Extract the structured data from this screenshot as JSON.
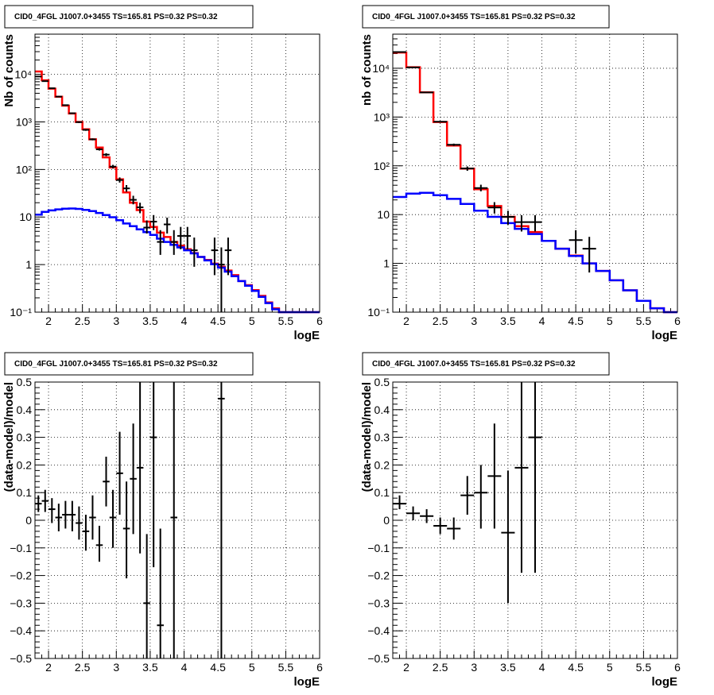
{
  "chart_data": [
    {
      "type": "step",
      "title": "CID0_4FGL J1007.0+3455 TS=165.81 PS=0.32 PS=0.32",
      "xlabel": "logE",
      "ylabel": "Nb of counts",
      "xlim": [
        1.8,
        6.0
      ],
      "ylim": [
        0.1,
        70000
      ],
      "yscale": "log",
      "grid": true,
      "xticks": [
        "2",
        "2.5",
        "3",
        "3.5",
        "4",
        "4.5",
        "5",
        "5.5",
        "6"
      ],
      "yticks": [
        "10⁻¹",
        "1",
        "10",
        "10²",
        "10³",
        "10⁴"
      ],
      "bin_edges": [
        1.8,
        1.9,
        2.0,
        2.1,
        2.2,
        2.3,
        2.4,
        2.5,
        2.6,
        2.7,
        2.8,
        2.9,
        3.0,
        3.1,
        3.2,
        3.3,
        3.4,
        3.5,
        3.6,
        3.7,
        3.8,
        3.9,
        4.0,
        4.1,
        4.2,
        4.3,
        4.4,
        4.5,
        4.6,
        4.7,
        4.8,
        4.9,
        5.0,
        5.1,
        5.2,
        5.3,
        5.4,
        5.5,
        5.6,
        5.7,
        5.8,
        5.9,
        6.0
      ],
      "series": [
        {
          "color": "#ff0000",
          "values": [
            11500,
            7500,
            5000,
            3400,
            2200,
            1500,
            1000,
            700,
            430,
            290,
            180,
            110,
            62,
            33,
            20,
            14,
            8.0,
            6.2,
            4.7,
            3.8,
            3.0,
            2.5,
            2.1,
            1.75,
            1.45,
            1.25,
            1.05,
            0.9,
            0.75,
            0.6,
            0.45,
            0.37,
            0.29,
            0.22,
            0.16,
            0.12,
            0.1,
            0.1,
            0.1,
            0.1,
            0.1,
            0.1
          ]
        },
        {
          "color": "#0000ff",
          "values": [
            11.2,
            12.8,
            13.8,
            14.5,
            15.0,
            15.1,
            14.8,
            14.1,
            13.3,
            12.2,
            11.0,
            9.9,
            8.6,
            7.3,
            6.4,
            5.5,
            4.8,
            4.2,
            3.5,
            3.0,
            2.6,
            2.3,
            2.0,
            1.72,
            1.45,
            1.22,
            1.02,
            0.86,
            0.71,
            0.57,
            0.45,
            0.36,
            0.28,
            0.21,
            0.155,
            0.115,
            0.1,
            0.1,
            0.1,
            0.1,
            0.1,
            0.1
          ]
        }
      ],
      "points": [
        {
          "x": 1.85,
          "y": 9000,
          "lo": 8800,
          "hi": 9200
        },
        {
          "x": 1.95,
          "y": 7200,
          "lo": 7050,
          "hi": 7350
        },
        {
          "x": 2.05,
          "y": 5100,
          "lo": 4970,
          "hi": 5230
        },
        {
          "x": 2.15,
          "y": 3400,
          "lo": 3300,
          "hi": 3500
        },
        {
          "x": 2.25,
          "y": 2250,
          "lo": 2180,
          "hi": 2320
        },
        {
          "x": 2.35,
          "y": 1520,
          "lo": 1470,
          "hi": 1570
        },
        {
          "x": 2.45,
          "y": 990,
          "lo": 950,
          "hi": 1030
        },
        {
          "x": 2.55,
          "y": 680,
          "lo": 650,
          "hi": 710
        },
        {
          "x": 2.65,
          "y": 430,
          "lo": 410,
          "hi": 450
        },
        {
          "x": 2.75,
          "y": 265,
          "lo": 250,
          "hi": 280
        },
        {
          "x": 2.85,
          "y": 205,
          "lo": 190,
          "hi": 220
        },
        {
          "x": 2.95,
          "y": 115,
          "lo": 105,
          "hi": 125
        },
        {
          "x": 3.05,
          "y": 60,
          "lo": 53,
          "hi": 68
        },
        {
          "x": 3.15,
          "y": 40,
          "lo": 34,
          "hi": 47
        },
        {
          "x": 3.25,
          "y": 23,
          "lo": 18.5,
          "hi": 28
        },
        {
          "x": 3.35,
          "y": 16,
          "lo": 12,
          "hi": 20
        },
        {
          "x": 3.45,
          "y": 6,
          "lo": 4.5,
          "hi": 8.5
        },
        {
          "x": 3.55,
          "y": 8,
          "lo": 5.3,
          "hi": 11
        },
        {
          "x": 3.65,
          "y": 3,
          "lo": 1.6,
          "hi": 5.3
        },
        {
          "x": 3.75,
          "y": 7,
          "lo": 4.5,
          "hi": 9.7
        },
        {
          "x": 3.85,
          "y": 3,
          "lo": 1.6,
          "hi": 5.3
        },
        {
          "x": 3.95,
          "y": 4,
          "lo": 2.1,
          "hi": 6.2
        },
        {
          "x": 4.05,
          "y": 4,
          "lo": 2.1,
          "hi": 6.2
        },
        {
          "x": 4.15,
          "y": 2,
          "lo": 0.9,
          "hi": 3.7
        },
        {
          "x": 4.45,
          "y": 2,
          "lo": 0.6,
          "hi": 3.7
        },
        {
          "x": 4.55,
          "y": 1,
          "lo": 0.1,
          "hi": 2.3
        },
        {
          "x": 4.65,
          "y": 2,
          "lo": 0.6,
          "hi": 3.7
        }
      ]
    },
    {
      "type": "step",
      "title": "CID0_4FGL J1007.0+3455 TS=165.81 PS=0.32 PS=0.32",
      "xlabel": "logE",
      "ylabel": "nb of counts",
      "xlim": [
        1.8,
        6.0
      ],
      "ylim": [
        0.1,
        50000
      ],
      "yscale": "log",
      "grid": true,
      "xticks": [
        "2",
        "2.5",
        "3",
        "3.5",
        "4",
        "4.5",
        "5",
        "5.5",
        "6"
      ],
      "yticks": [
        "10⁻¹",
        "1",
        "10",
        "10²",
        "10³",
        "10⁴"
      ],
      "bin_edges": [
        1.8,
        2.0,
        2.2,
        2.4,
        2.6,
        2.8,
        3.0,
        3.2,
        3.4,
        3.6,
        3.8,
        4.0,
        4.2,
        4.4,
        4.6,
        4.8,
        5.0,
        5.2,
        5.4,
        5.6,
        5.8,
        6.0
      ],
      "series": [
        {
          "color": "#ff0000",
          "values": [
            21000,
            10500,
            3200,
            790,
            260,
            88,
            33,
            15,
            9.0,
            5.8,
            4.4,
            2.9,
            2.0,
            1.45,
            1.0,
            0.7,
            0.45,
            0.28,
            0.17,
            0.12,
            0.1
          ]
        },
        {
          "color": "#0000ff",
          "values": [
            23,
            27,
            28,
            25,
            21,
            16.5,
            12,
            9.0,
            6.7,
            5.1,
            4.0,
            2.9,
            2.0,
            1.42,
            1.0,
            0.7,
            0.45,
            0.28,
            0.17,
            0.12,
            0.1
          ]
        }
      ],
      "points": [
        {
          "x": 1.9,
          "y": 21500,
          "lo": 21300,
          "hi": 21700
        },
        {
          "x": 2.1,
          "y": 10400,
          "lo": 10250,
          "hi": 10550
        },
        {
          "x": 2.3,
          "y": 3200,
          "lo": 3140,
          "hi": 3260
        },
        {
          "x": 2.5,
          "y": 800,
          "lo": 775,
          "hi": 825
        },
        {
          "x": 2.7,
          "y": 270,
          "lo": 255,
          "hi": 285
        },
        {
          "x": 2.9,
          "y": 88,
          "lo": 79,
          "hi": 97
        },
        {
          "x": 3.1,
          "y": 35,
          "lo": 30,
          "hi": 41
        },
        {
          "x": 3.3,
          "y": 14,
          "lo": 10.5,
          "hi": 18
        },
        {
          "x": 3.5,
          "y": 9,
          "lo": 6.2,
          "hi": 12
        },
        {
          "x": 3.7,
          "y": 7,
          "lo": 4.5,
          "hi": 9.7
        },
        {
          "x": 3.9,
          "y": 7,
          "lo": 4.5,
          "hi": 9.7
        },
        {
          "x": 4.5,
          "y": 3,
          "lo": 1.6,
          "hi": 4.8
        },
        {
          "x": 4.7,
          "y": 2,
          "lo": 0.65,
          "hi": 3.5
        }
      ]
    },
    {
      "type": "scatter",
      "title": "CID0_4FGL J1007.0+3455 TS=165.81 PS=0.32 PS=0.32",
      "xlabel": "logE",
      "ylabel": "(data-model)/model",
      "xlim": [
        1.8,
        6.0
      ],
      "ylim": [
        -0.5,
        0.5
      ],
      "grid": true,
      "xticks": [
        "2",
        "2.5",
        "3",
        "3.5",
        "4",
        "4.5",
        "5",
        "5.5",
        "6"
      ],
      "yticks": [
        "−0.5",
        "−0.4",
        "−0.3",
        "−0.2",
        "−0.1",
        "0",
        "0.1",
        "0.2",
        "0.3",
        "0.4",
        "0.5"
      ],
      "points": [
        {
          "x": 1.85,
          "y": 0.06,
          "lo": 0.03,
          "hi": 0.09
        },
        {
          "x": 1.95,
          "y": 0.07,
          "lo": 0.03,
          "hi": 0.11
        },
        {
          "x": 2.05,
          "y": 0.04,
          "lo": -0.01,
          "hi": 0.08
        },
        {
          "x": 2.15,
          "y": 0.01,
          "lo": -0.04,
          "hi": 0.06
        },
        {
          "x": 2.25,
          "y": 0.02,
          "lo": -0.03,
          "hi": 0.07
        },
        {
          "x": 2.35,
          "y": 0.02,
          "lo": -0.04,
          "hi": 0.07
        },
        {
          "x": 2.45,
          "y": -0.01,
          "lo": -0.07,
          "hi": 0.05
        },
        {
          "x": 2.55,
          "y": -0.04,
          "lo": -0.11,
          "hi": 0.02
        },
        {
          "x": 2.65,
          "y": 0.01,
          "lo": -0.07,
          "hi": 0.09
        },
        {
          "x": 2.75,
          "y": -0.09,
          "lo": -0.15,
          "hi": -0.02
        },
        {
          "x": 2.85,
          "y": 0.14,
          "lo": 0.05,
          "hi": 0.23
        },
        {
          "x": 2.95,
          "y": 0.01,
          "lo": -0.1,
          "hi": 0.11
        },
        {
          "x": 3.05,
          "y": 0.17,
          "lo": 0.02,
          "hi": 0.32
        },
        {
          "x": 3.15,
          "y": -0.03,
          "lo": -0.21,
          "hi": 0.14
        },
        {
          "x": 3.25,
          "y": 0.15,
          "lo": -0.05,
          "hi": 0.35
        },
        {
          "x": 3.35,
          "y": 0.19,
          "lo": -0.12,
          "hi": 0.5
        },
        {
          "x": 3.45,
          "y": -0.3,
          "lo": -0.5,
          "hi": -0.05
        },
        {
          "x": 3.55,
          "y": 0.3,
          "lo": -0.17,
          "hi": 0.5
        },
        {
          "x": 3.65,
          "y": -0.38,
          "lo": -0.5,
          "hi": -0.03
        },
        {
          "x": 3.85,
          "y": 0.01,
          "lo": -0.5,
          "hi": 0.5
        },
        {
          "x": 4.55,
          "y": 0.44,
          "lo": -0.5,
          "hi": 0.5
        }
      ]
    },
    {
      "type": "scatter",
      "title": "CID0_4FGL J1007.0+3455 TS=165.81 PS=0.32 PS=0.32",
      "xlabel": "logE",
      "ylabel": "(data-model)/model",
      "xlim": [
        1.8,
        6.0
      ],
      "ylim": [
        -0.5,
        0.5
      ],
      "grid": true,
      "xticks": [
        "2",
        "2.5",
        "3",
        "3.5",
        "4",
        "4.5",
        "5",
        "5.5",
        "6"
      ],
      "yticks": [
        "−0.5",
        "−0.4",
        "−0.3",
        "−0.2",
        "−0.1",
        "0",
        "0.1",
        "0.2",
        "0.3",
        "0.4",
        "0.5"
      ],
      "points": [
        {
          "x": 1.9,
          "y": 0.06,
          "lo": 0.04,
          "hi": 0.09
        },
        {
          "x": 2.1,
          "y": 0.025,
          "lo": 0.0,
          "hi": 0.05
        },
        {
          "x": 2.3,
          "y": 0.015,
          "lo": -0.01,
          "hi": 0.04
        },
        {
          "x": 2.5,
          "y": -0.02,
          "lo": -0.05,
          "hi": 0.01
        },
        {
          "x": 2.7,
          "y": -0.03,
          "lo": -0.07,
          "hi": 0.01
        },
        {
          "x": 2.9,
          "y": 0.09,
          "lo": 0.02,
          "hi": 0.16
        },
        {
          "x": 3.1,
          "y": 0.1,
          "lo": -0.03,
          "hi": 0.2
        },
        {
          "x": 3.3,
          "y": 0.16,
          "lo": -0.03,
          "hi": 0.35
        },
        {
          "x": 3.5,
          "y": -0.045,
          "lo": -0.3,
          "hi": 0.18
        },
        {
          "x": 3.7,
          "y": 0.19,
          "lo": -0.19,
          "hi": 0.5
        },
        {
          "x": 3.9,
          "y": 0.3,
          "lo": -0.19,
          "hi": 0.5
        }
      ]
    }
  ]
}
